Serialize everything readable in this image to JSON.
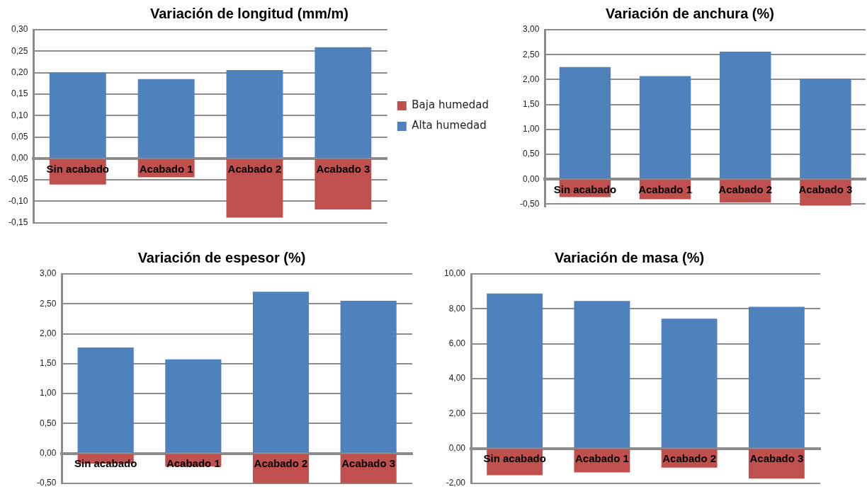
{
  "chart_data": [
    {
      "type": "bar",
      "title": "Variación de longitud (mm/m)",
      "categories": [
        "Sin acabado",
        "Acabado 1",
        "Acabado 2",
        "Acabado 3"
      ],
      "stacked": true,
      "legend": "right",
      "grid": "y",
      "series": [
        {
          "name": "Baja humedad",
          "color": "#c0504d",
          "values": [
            -0.061,
            -0.044,
            -0.138,
            -0.119
          ]
        },
        {
          "name": "Alta humedad",
          "color": "#4f81bd",
          "values": [
            0.2,
            0.185,
            0.206,
            0.259
          ]
        }
      ],
      "ylim": [
        -0.15,
        0.3
      ],
      "yticks": [
        {
          "value": -0.15,
          "label": "-0,15"
        },
        {
          "value": -0.1,
          "label": "-0,10"
        },
        {
          "value": -0.05,
          "label": "-0,05"
        },
        {
          "value": 0,
          "label": "0,00"
        },
        {
          "value": 0.05,
          "label": "0,05"
        },
        {
          "value": 0.1,
          "label": "0,10"
        },
        {
          "value": 0.15,
          "label": "0,15"
        },
        {
          "value": 0.2,
          "label": "0,20"
        },
        {
          "value": 0.25,
          "label": "0,25"
        },
        {
          "value": 0.3,
          "label": "0,30"
        }
      ]
    },
    {
      "type": "bar",
      "title": "Variación de anchura (%)",
      "categories": [
        "Sin acabado",
        "Acabado 1",
        "Acabado 2",
        "Acabado 3"
      ],
      "stacked": true,
      "grid": "y",
      "series": [
        {
          "color": "#c0504d",
          "values": [
            -0.36,
            -0.4,
            -0.47,
            -0.53
          ]
        },
        {
          "color": "#4f81bd",
          "values": [
            2.25,
            2.07,
            2.56,
            2.02
          ]
        }
      ],
      "ylim": [
        -0.55,
        3
      ],
      "yticks": [
        {
          "value": -0.5,
          "label": "-0,50"
        },
        {
          "value": 0,
          "label": "0,00"
        },
        {
          "value": 0.5,
          "label": "0,50"
        },
        {
          "value": 1,
          "label": "1,00"
        },
        {
          "value": 1.5,
          "label": "1,50"
        },
        {
          "value": 2,
          "label": "2,00"
        },
        {
          "value": 2.5,
          "label": "2,50"
        },
        {
          "value": 3,
          "label": "3,00"
        }
      ]
    },
    {
      "type": "bar",
      "title": "Variación de espesor (%)",
      "categories": [
        "Sin acabado",
        "Acabado 1",
        "Acabado 2",
        "Acabado 3"
      ],
      "stacked": true,
      "grid": "y",
      "series": [
        {
          "color": "#c0504d",
          "values": [
            -0.17,
            -0.22,
            -0.5,
            -0.5
          ]
        },
        {
          "color": "#4f81bd",
          "values": [
            1.77,
            1.57,
            2.7,
            2.55
          ]
        }
      ],
      "ylim": [
        -0.5,
        3
      ],
      "yticks": [
        {
          "value": -0.5,
          "label": "-0,50"
        },
        {
          "value": 0,
          "label": "0,00"
        },
        {
          "value": 0.5,
          "label": "0,50"
        },
        {
          "value": 1,
          "label": "1,00"
        },
        {
          "value": 1.5,
          "label": "1,50"
        },
        {
          "value": 2,
          "label": "2,00"
        },
        {
          "value": 2.5,
          "label": "2,50"
        },
        {
          "value": 3,
          "label": "3,00"
        }
      ]
    },
    {
      "type": "bar",
      "title": "Variación de masa (%)",
      "categories": [
        "Sin acabado",
        "Acabado 1",
        "Acabado 2",
        "Acabado 3"
      ],
      "stacked": true,
      "grid": "y",
      "series": [
        {
          "color": "#c0504d",
          "values": [
            -1.54,
            -1.38,
            -1.11,
            -1.73
          ]
        },
        {
          "color": "#4f81bd",
          "values": [
            8.87,
            8.45,
            7.43,
            8.11
          ]
        }
      ],
      "ylim": [
        -2,
        10
      ],
      "yticks": [
        {
          "value": -2,
          "label": "-2,00"
        },
        {
          "value": 0,
          "label": "0,00"
        },
        {
          "value": 2,
          "label": "2,00"
        },
        {
          "value": 4,
          "label": "4,00"
        },
        {
          "value": 6,
          "label": "6,00"
        },
        {
          "value": 8,
          "label": "8,00"
        },
        {
          "value": 10,
          "label": "10,00"
        }
      ]
    }
  ]
}
